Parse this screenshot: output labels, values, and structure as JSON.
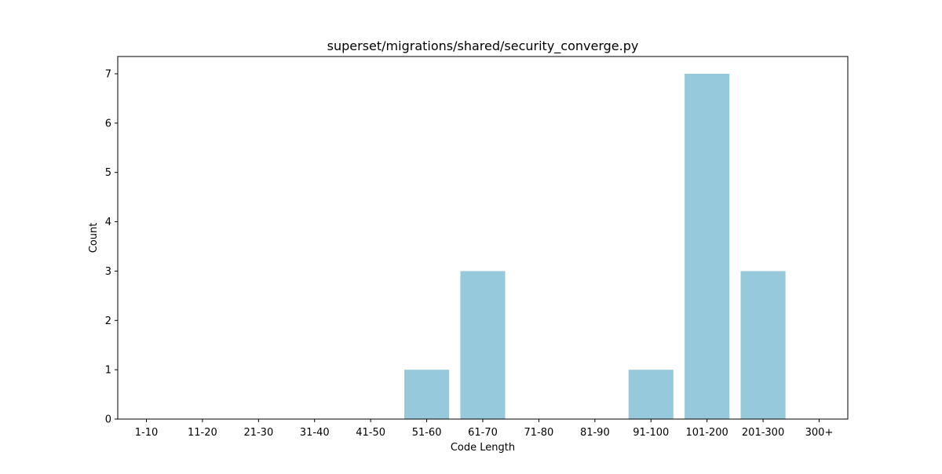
{
  "chart_data": {
    "type": "bar",
    "title": "superset/migrations/shared/security_converge.py",
    "xlabel": "Code Length",
    "ylabel": "Count",
    "categories": [
      "1-10",
      "11-20",
      "21-30",
      "31-40",
      "41-50",
      "51-60",
      "61-70",
      "71-80",
      "81-90",
      "91-100",
      "101-200",
      "201-300",
      "300+"
    ],
    "values": [
      0,
      0,
      0,
      0,
      0,
      1,
      3,
      0,
      0,
      1,
      7,
      3,
      0
    ],
    "ylim": [
      0,
      7.35
    ],
    "yticks": [
      "0",
      "1",
      "2",
      "3",
      "4",
      "5",
      "6",
      "7"
    ],
    "grid": false,
    "legend": "none",
    "bar_color": "#96c9dc"
  }
}
